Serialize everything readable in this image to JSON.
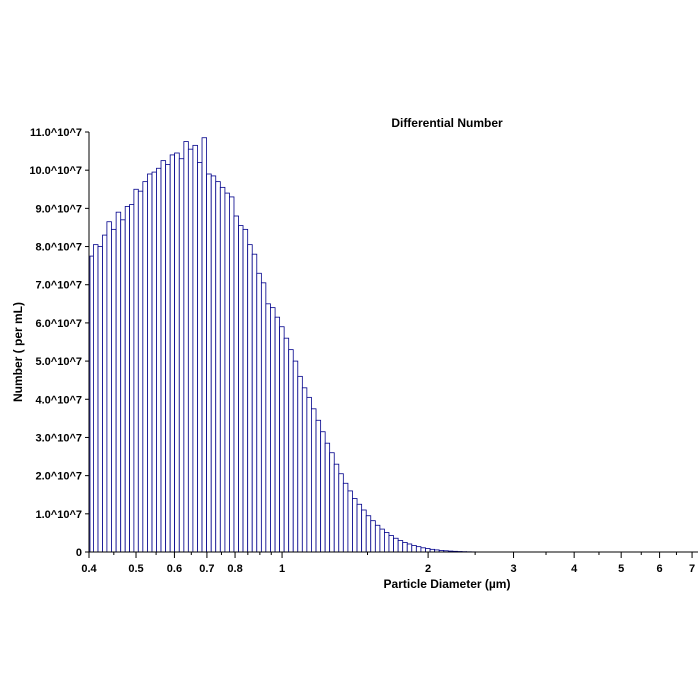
{
  "chart_data": {
    "type": "bar",
    "title": "Differential Number",
    "xlabel": "Particle Diameter (µm)",
    "ylabel": "Number ( per mL)",
    "x_scale": "log",
    "xlim": [
      0.4,
      7.2
    ],
    "ylim": [
      0,
      110000000
    ],
    "grid": false,
    "legend": "none",
    "bar_color": "#00008b",
    "x_ticks": [
      "0.4",
      "0.5",
      "0.6",
      "0.7",
      "0.8",
      "1",
      "2",
      "3",
      "4",
      "5",
      "6",
      "7"
    ],
    "y_ticks": [
      "0",
      "1.0^10^7",
      "2.0^10^7",
      "3.0^10^7",
      "4.0^10^7",
      "5.0^10^7",
      "6.0^10^7",
      "7.0^10^7",
      "8.0^10^7",
      "9.0^10^7",
      "10.0^10^7",
      "11.0^10^7"
    ],
    "x": [
      0.404,
      0.413,
      0.422,
      0.431,
      0.44,
      0.45,
      0.46,
      0.47,
      0.48,
      0.49,
      0.5,
      0.511,
      0.522,
      0.534,
      0.545,
      0.557,
      0.569,
      0.582,
      0.594,
      0.607,
      0.621,
      0.634,
      0.648,
      0.662,
      0.677,
      0.691,
      0.707,
      0.722,
      0.738,
      0.754,
      0.771,
      0.787,
      0.805,
      0.822,
      0.84,
      0.859,
      0.877,
      0.897,
      0.916,
      0.936,
      0.957,
      0.978,
      0.999,
      1.021,
      1.043,
      1.066,
      1.089,
      1.113,
      1.137,
      1.162,
      1.188,
      1.214,
      1.24,
      1.267,
      1.295,
      1.323,
      1.352,
      1.382,
      1.412,
      1.443,
      1.475,
      1.507,
      1.54,
      1.574,
      1.608,
      1.643,
      1.679,
      1.716,
      1.754,
      1.792,
      1.831,
      1.871,
      1.912,
      1.954,
      1.997,
      2.041,
      2.085,
      2.131,
      2.178,
      2.225,
      2.274,
      2.324,
      2.375,
      2.427,
      2.48,
      2.534,
      2.59,
      2.646,
      2.704
    ],
    "values": [
      77500000,
      80500000,
      80000000,
      83000000,
      86500000,
      84500000,
      89000000,
      87000000,
      90500000,
      91000000,
      95000000,
      94500000,
      97000000,
      99000000,
      99500000,
      100500000,
      102500000,
      101500000,
      104000000,
      104500000,
      103000000,
      107500000,
      105500000,
      106500000,
      102000000,
      108500000,
      99000000,
      98500000,
      97000000,
      95500000,
      94000000,
      93000000,
      88000000,
      85500000,
      84500000,
      80500000,
      78000000,
      73000000,
      70500000,
      65000000,
      64000000,
      61500000,
      59000000,
      56000000,
      53000000,
      50000000,
      46000000,
      43000000,
      40500000,
      37500000,
      34500000,
      31500000,
      28500000,
      26000000,
      23000000,
      20500000,
      18000000,
      16000000,
      14000000,
      12500000,
      11000000,
      9500000,
      8200000,
      7000000,
      6000000,
      5100000,
      4300000,
      3600000,
      3000000,
      2500000,
      2100000,
      1700000,
      1400000,
      1100000,
      900000,
      700000,
      550000,
      420000,
      320000,
      240000,
      180000,
      130000,
      90000,
      60000,
      40000,
      25000,
      15000,
      8000,
      4000
    ]
  }
}
